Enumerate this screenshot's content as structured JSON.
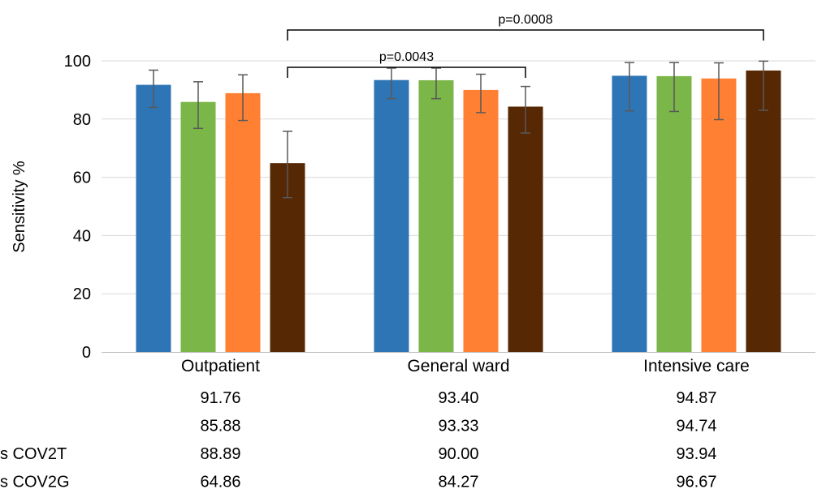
{
  "chart_data": {
    "type": "bar",
    "categories": [
      "Outpatient",
      "General ward",
      "Intensive care"
    ],
    "series": [
      {
        "name": "",
        "color": "#2e75b6",
        "values": [
          91.76,
          93.4,
          94.87
        ],
        "err_low": [
          84.0,
          87.0,
          82.8
        ],
        "err_high": [
          96.8,
          97.5,
          99.4
        ]
      },
      {
        "name": "",
        "color": "#7ab648",
        "values": [
          85.88,
          93.33,
          94.74
        ],
        "err_low": [
          76.8,
          87.0,
          82.6
        ],
        "err_high": [
          92.8,
          97.5,
          99.4
        ]
      },
      {
        "name": "",
        "color": "#ff8033",
        "values": [
          88.89,
          90.0,
          93.94
        ],
        "err_low": [
          79.5,
          82.2,
          79.8
        ],
        "err_high": [
          95.2,
          95.4,
          99.3
        ]
      },
      {
        "name": "",
        "color": "#562804",
        "values": [
          64.86,
          84.27,
          96.67
        ],
        "err_low": [
          53.0,
          75.2,
          83.0
        ],
        "err_high": [
          75.8,
          91.2,
          99.9
        ]
      }
    ],
    "ylabel": "Sensitivity %",
    "ylim": [
      0,
      100
    ],
    "yticks": [
      0,
      20,
      40,
      60,
      80,
      100
    ],
    "grid": true,
    "annotations": [
      {
        "text": "p=0.0043",
        "from": [
          0,
          3
        ],
        "to": [
          1,
          3
        ]
      },
      {
        "text": "p=0.0008",
        "from": [
          0,
          3
        ],
        "to": [
          2,
          3
        ]
      }
    ],
    "table": {
      "row_labels": [
        "",
        "",
        "s COV2T",
        "s COV2G"
      ],
      "rows": [
        [
          "91.76",
          "93.40",
          "94.87"
        ],
        [
          "85.88",
          "93.33",
          "94.74"
        ],
        [
          "88.89",
          "90.00",
          "93.94"
        ],
        [
          "64.86",
          "84.27",
          "96.67"
        ]
      ]
    }
  }
}
